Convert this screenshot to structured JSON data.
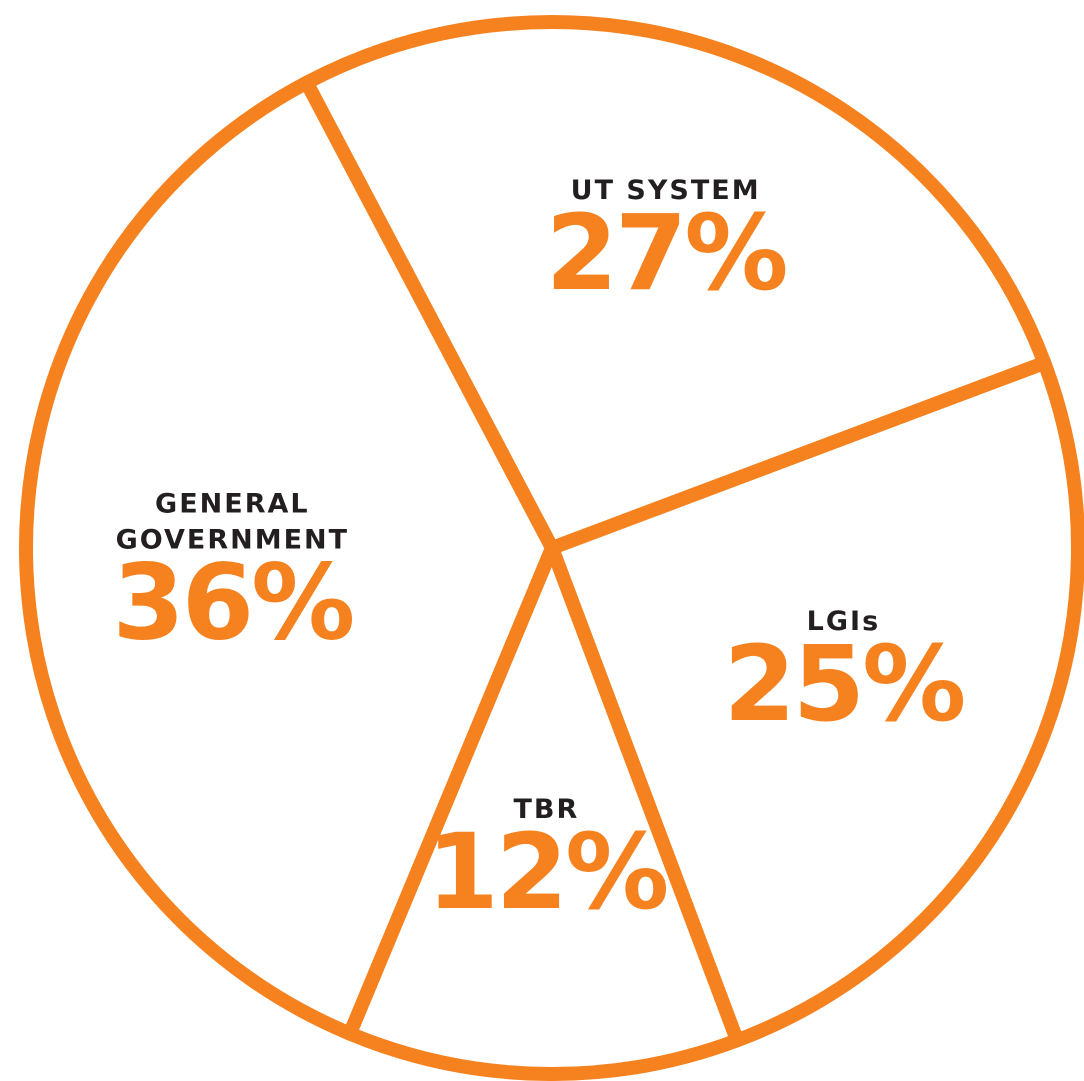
{
  "chart_data": {
    "type": "pie",
    "color": "#f5821f",
    "categories": [
      "UT SYSTEM",
      "LGIs",
      "TBR",
      "GENERAL GOVERNMENT"
    ],
    "values": [
      27,
      25,
      12,
      36
    ],
    "value_labels": [
      "27%",
      "25%",
      "12%",
      "36%"
    ]
  }
}
